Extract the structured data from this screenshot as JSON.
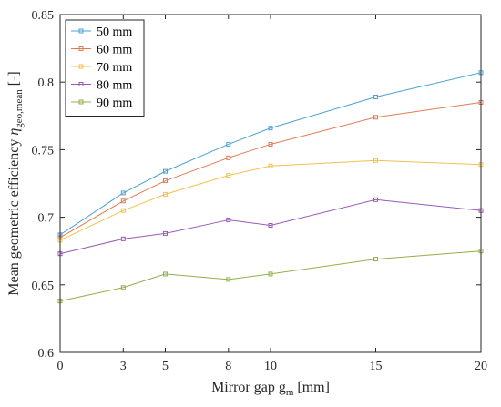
{
  "chart_data": {
    "type": "line",
    "x": [
      0,
      3,
      5,
      8,
      10,
      15,
      20
    ],
    "xticks": [
      "0",
      "3",
      "5",
      "8",
      "10",
      "15",
      "20"
    ],
    "xlim": [
      0,
      20
    ],
    "ylim": [
      0.6,
      0.85
    ],
    "yticks": [
      "0.6",
      "0.65",
      "0.7",
      "0.75",
      "0.8",
      "0.85"
    ],
    "xlabel": {
      "main": "Mirror gap g",
      "sub": "m",
      "unit": " [mm]"
    },
    "ylabel": {
      "main": "Mean geometric efficiency ",
      "symbol": "η",
      "sub": "geo,mean",
      "unit": " [-]"
    },
    "legend_position": "top-left",
    "grid": false,
    "series": [
      {
        "name": "50 mm",
        "color": "#4aa3d3",
        "values": [
          0.687,
          0.718,
          0.734,
          0.754,
          0.766,
          0.789,
          0.807
        ]
      },
      {
        "name": "60 mm",
        "color": "#e07b54",
        "values": [
          0.685,
          0.712,
          0.727,
          0.744,
          0.754,
          0.774,
          0.785
        ]
      },
      {
        "name": "70 mm",
        "color": "#f2c14e",
        "values": [
          0.683,
          0.705,
          0.717,
          0.731,
          0.738,
          0.742,
          0.739
        ]
      },
      {
        "name": "80 mm",
        "color": "#9b59b6",
        "values": [
          0.673,
          0.684,
          0.688,
          0.698,
          0.694,
          0.713,
          0.705
        ]
      },
      {
        "name": "90 mm",
        "color": "#8fb04a",
        "values": [
          0.638,
          0.648,
          0.658,
          0.654,
          0.658,
          0.669,
          0.675
        ]
      }
    ]
  }
}
